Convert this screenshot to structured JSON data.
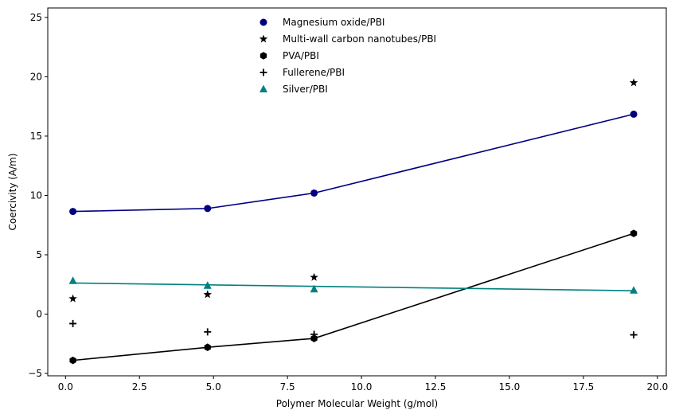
{
  "chart_data": {
    "type": "scatter",
    "xlabel": "Polymer Molecular Weight (g/mol)",
    "ylabel": "Coercivity (A/m)",
    "xlim": [
      -0.6,
      20.3
    ],
    "ylim": [
      -5.2,
      25.8
    ],
    "xticks": [
      0.0,
      2.5,
      5.0,
      7.5,
      10.0,
      12.5,
      15.0,
      17.5,
      20.0
    ],
    "xtick_labels": [
      "0.0",
      "2.5",
      "5.0",
      "7.5",
      "10.0",
      "12.5",
      "15.0",
      "17.5",
      "20.0"
    ],
    "yticks": [
      -5,
      0,
      5,
      10,
      15,
      20,
      25
    ],
    "ytick_labels": [
      "−5",
      "0",
      "5",
      "10",
      "15",
      "20",
      "25"
    ],
    "grid": false,
    "legend_position": "top-center",
    "series": [
      {
        "name": "Magnesium oxide/PBI",
        "marker": "circle",
        "color": "#000080",
        "x": [
          0.25,
          4.8,
          8.4,
          19.2
        ],
        "y": [
          8.65,
          8.9,
          10.2,
          16.85
        ],
        "fit_line": {
          "x": [
            0.25,
            4.8,
            8.4,
            19.2
          ],
          "y": [
            8.65,
            8.9,
            10.2,
            16.85
          ]
        }
      },
      {
        "name": "Multi-wall carbon nanotubes/PBI",
        "marker": "star",
        "color": "#000000",
        "x": [
          0.25,
          4.8,
          8.4,
          19.2
        ],
        "y": [
          1.3,
          1.65,
          3.1,
          19.5
        ],
        "fit_line": null
      },
      {
        "name": "PVA/PBI",
        "marker": "hexagon",
        "color": "#000000",
        "x": [
          0.25,
          4.8,
          8.4,
          19.2
        ],
        "y": [
          -3.9,
          -2.8,
          -2.05,
          6.8
        ],
        "fit_line": {
          "x": [
            0.25,
            4.8,
            8.4,
            19.2
          ],
          "y": [
            -3.9,
            -2.8,
            -2.05,
            6.8
          ]
        }
      },
      {
        "name": "Fullerene/PBI",
        "marker": "plus",
        "color": "#000000",
        "x": [
          0.25,
          4.8,
          8.4,
          19.2
        ],
        "y": [
          -0.8,
          -1.5,
          -1.7,
          -1.75
        ],
        "fit_line": null
      },
      {
        "name": "Silver/PBI",
        "marker": "triangle",
        "color": "#008080",
        "x": [
          0.25,
          4.8,
          8.4,
          19.2
        ],
        "y": [
          2.8,
          2.4,
          2.1,
          2.0
        ],
        "fit_line": {
          "x": [
            0.25,
            19.2
          ],
          "y": [
            2.62,
            1.97
          ]
        }
      }
    ]
  }
}
